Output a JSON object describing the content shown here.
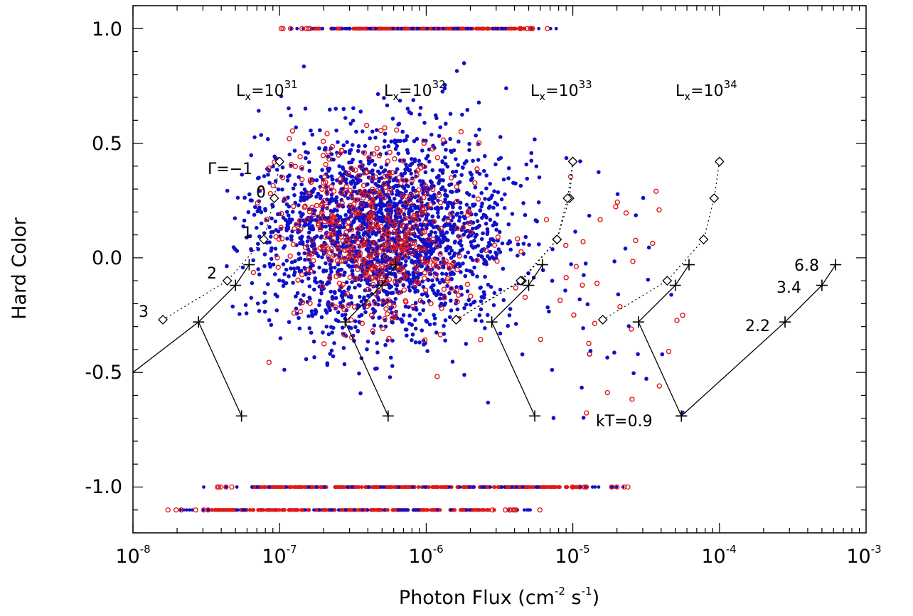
{
  "chart_data": {
    "type": "scatter",
    "title": "",
    "xlabel": "Photon Flux (cm",
    "xlabel_sup1": "-2",
    "xlabel_mid": " s",
    "xlabel_sup2": "-1",
    "xlabel_end": ")",
    "ylabel": "Hard Color",
    "xscale": "log",
    "xlim": [
      1e-08,
      0.001
    ],
    "ylim": [
      -1.2,
      1.1
    ],
    "grid": false,
    "x_ticks": [
      {
        "base": "10",
        "exp": "-8"
      },
      {
        "base": "10",
        "exp": "-7"
      },
      {
        "base": "10",
        "exp": "-6"
      },
      {
        "base": "10",
        "exp": "-5"
      },
      {
        "base": "10",
        "exp": "-4"
      },
      {
        "base": "10",
        "exp": "-3"
      }
    ],
    "y_ticks": [
      "1.0",
      "0.5",
      "0.0",
      "-0.5",
      "-1.0"
    ],
    "y_tick_values": [
      1.0,
      0.5,
      0.0,
      -0.5,
      -1.0
    ],
    "series_colors": {
      "blue": "#1010c8",
      "red": "#e01818"
    },
    "scatter_note": "dense cloud centered near x=5e-7, y=0.1",
    "band_rows": [
      {
        "y": 1.0,
        "red_from": 1e-07,
        "red_to": 8e-06
      },
      {
        "y": -1.0,
        "red_from": 2.8e-08,
        "red_to": 2.5e-05
      },
      {
        "y": -1.1,
        "red_from": 1.7e-08,
        "red_to": 6e-06
      }
    ],
    "luminosity_labels": [
      {
        "base": "L",
        "sub": "x",
        "eq": "=10",
        "exp": "31"
      },
      {
        "base": "L",
        "sub": "x",
        "eq": "=10",
        "exp": "32"
      },
      {
        "base": "L",
        "sub": "x",
        "eq": "=10",
        "exp": "33"
      },
      {
        "base": "L",
        "sub": "x",
        "eq": "=10",
        "exp": "34"
      }
    ],
    "powerlaw_labels": [
      "Γ=−1",
      "0",
      "1",
      "2",
      "3"
    ],
    "thermal_labels": [
      "kT=0.9",
      "2.2",
      "3.4",
      "6.8"
    ],
    "powerlaw_tracks": [
      [
        [
          1e-07,
          0.42
        ],
        [
          9.2e-08,
          0.26
        ],
        [
          7.8e-08,
          0.08
        ],
        [
          4.4e-08,
          -0.1
        ],
        [
          1.6e-08,
          -0.27
        ]
      ],
      [
        [
          1e-05,
          0.42
        ],
        [
          9.5e-06,
          0.26
        ],
        [
          7.8e-06,
          0.08
        ],
        [
          4.5e-06,
          -0.1
        ],
        [
          1.6e-06,
          -0.27
        ]
      ],
      [
        [
          1e-05,
          0.42
        ],
        [
          9.2e-06,
          0.26
        ],
        [
          7.8e-06,
          0.08
        ],
        [
          4.4e-06,
          -0.1
        ],
        [
          1.6e-06,
          -0.27
        ]
      ],
      [
        [
          0.0001,
          0.42
        ],
        [
          9.2e-05,
          0.26
        ],
        [
          7.8e-05,
          0.08
        ],
        [
          4.4e-05,
          -0.1
        ],
        [
          1.6e-05,
          -0.27
        ]
      ]
    ],
    "thermal_tracks": [
      [
        [
          5.5e-08,
          -0.69
        ],
        [
          2.8e-08,
          -0.28
        ],
        [
          5e-08,
          -0.12
        ],
        [
          6.2e-08,
          -0.03
        ]
      ],
      [
        [
          5.5e-07,
          -0.69
        ],
        [
          2.8e-07,
          -0.28
        ],
        [
          5e-07,
          -0.12
        ],
        [
          6.2e-07,
          -0.03
        ]
      ],
      [
        [
          5.5e-06,
          -0.69
        ],
        [
          2.8e-06,
          -0.28
        ],
        [
          5e-06,
          -0.12
        ],
        [
          6.2e-06,
          -0.03
        ]
      ],
      [
        [
          5.5e-05,
          -0.69
        ],
        [
          2.8e-05,
          -0.28
        ],
        [
          5e-05,
          -0.12
        ],
        [
          6.2e-05,
          -0.03
        ]
      ],
      [
        [
          5.5e-05,
          -0.69
        ],
        [
          0.00028,
          -0.28
        ],
        [
          0.0005,
          -0.12
        ],
        [
          0.00062,
          -0.03
        ]
      ]
    ]
  }
}
